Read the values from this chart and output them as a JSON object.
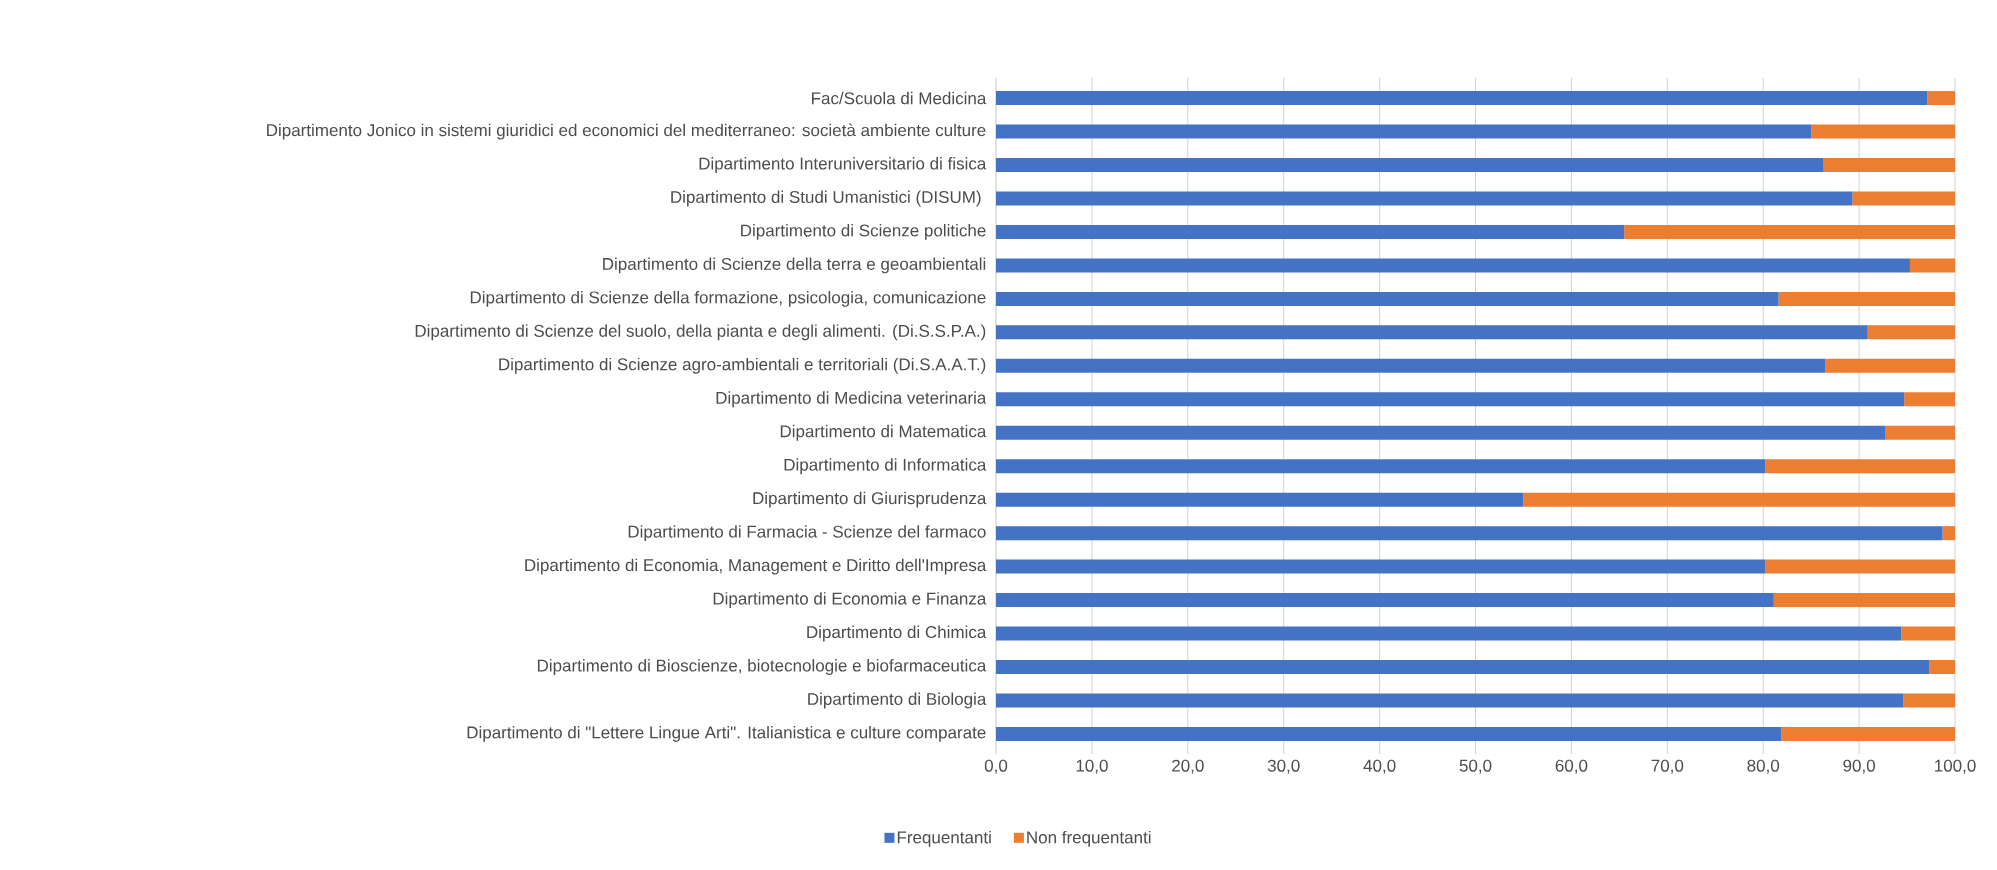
{
  "chart_data": {
    "type": "bar",
    "orientation": "horizontal",
    "stacked": true,
    "categories": [
      "Fac/Scuola di Medicina",
      "Dipartimento Jonico in sistemi giuridici ed economici del mediterraneo: società ambiente culture",
      "Dipartimento Interuniversitario di fisica",
      "Dipartimento di Studi Umanistici (DISUM) ",
      "Dipartimento di Scienze politiche",
      "Dipartimento di Scienze della terra e geoambientali",
      "Dipartimento di Scienze della formazione, psicologia, comunicazione",
      "Dipartimento di Scienze del suolo, della pianta e degli alimenti. (Di.S.S.P.A.)",
      "Dipartimento di Scienze agro-ambientali e territoriali (Di.S.A.A.T.)",
      "Dipartimento di Medicina veterinaria",
      "Dipartimento di Matematica",
      "Dipartimento di Informatica",
      "Dipartimento di Giurisprudenza",
      "Dipartimento di Farmacia - Scienze del farmaco",
      "Dipartimento di Economia, Management e Diritto dell'Impresa",
      "Dipartimento di Economia e Finanza",
      "Dipartimento di Chimica",
      "Dipartimento di Bioscienze, biotecnologie e biofarmaceutica",
      "Dipartimento di Biologia",
      "Dipartimento di \"Lettere Lingue Arti\". Italianistica e culture comparate"
    ],
    "series": [
      {
        "name": "Frequentanti",
        "color": "#4472c4",
        "values": [
          97.1,
          85.0,
          86.3,
          89.3,
          65.5,
          95.3,
          81.6,
          90.9,
          86.5,
          94.7,
          92.7,
          80.2,
          55.0,
          98.7,
          80.2,
          81.1,
          94.4,
          97.3,
          94.6,
          81.9
        ]
      },
      {
        "name": "Non frequentanti",
        "color": "#ed7d31",
        "values": [
          2.9,
          15.0,
          13.7,
          10.7,
          34.5,
          4.7,
          18.4,
          9.1,
          13.5,
          5.3,
          7.3,
          19.8,
          45.0,
          1.3,
          19.8,
          18.9,
          5.6,
          2.7,
          5.4,
          18.1
        ]
      }
    ],
    "xlim": [
      0,
      100
    ],
    "xticks": [
      {
        "value": 0,
        "label": "0,0"
      },
      {
        "value": 10,
        "label": "10,0"
      },
      {
        "value": 20,
        "label": "20,0"
      },
      {
        "value": 30,
        "label": "30,0"
      },
      {
        "value": 40,
        "label": "40,0"
      },
      {
        "value": 50,
        "label": "50,0"
      },
      {
        "value": 60,
        "label": "60,0"
      },
      {
        "value": 70,
        "label": "70,0"
      },
      {
        "value": 80,
        "label": "80,0"
      },
      {
        "value": 90,
        "label": "90,0"
      },
      {
        "value": 100,
        "label": "100,0"
      }
    ],
    "grid": "x",
    "legend": "bottom"
  }
}
